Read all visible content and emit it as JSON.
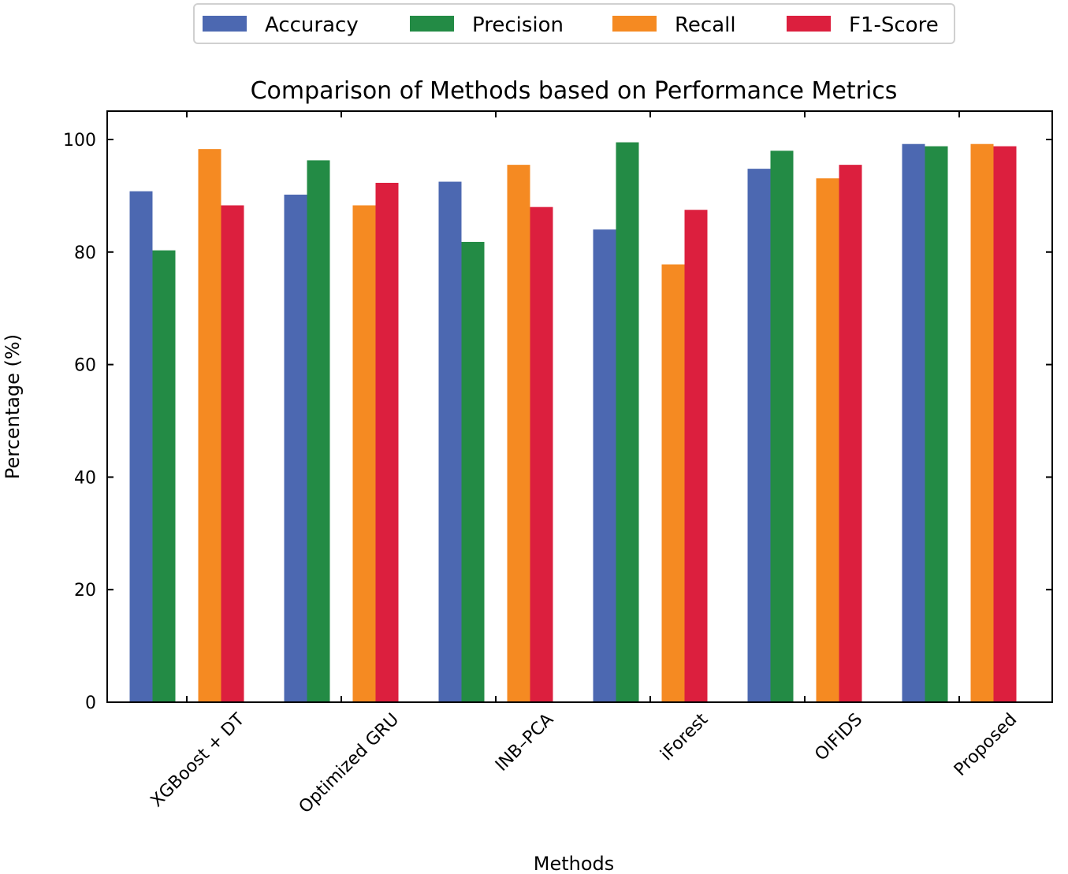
{
  "chart_data": {
    "type": "bar",
    "title": "Comparison of Methods based on Performance Metrics",
    "xlabel": "Methods",
    "ylabel": "Percentage (%)",
    "ylim": [
      0,
      105
    ],
    "yticks": [
      0,
      20,
      40,
      60,
      80,
      100
    ],
    "grid": false,
    "legend_position": "top-center",
    "categories": [
      "XGBoost + DT",
      "Optimized GRU",
      "INB–PCA",
      "iForest",
      "OIFIDS",
      "Proposed"
    ],
    "series": [
      {
        "name": "Accuracy",
        "color": "#4c68b1",
        "values": [
          90.8,
          90.2,
          92.5,
          84.0,
          94.8,
          99.2
        ]
      },
      {
        "name": "Precision",
        "color": "#238b45",
        "values": [
          80.3,
          96.3,
          81.8,
          99.5,
          98.0,
          98.8
        ]
      },
      {
        "name": "Recall",
        "color": "#f58a22",
        "values": [
          98.3,
          88.3,
          95.5,
          77.8,
          93.1,
          99.2
        ]
      },
      {
        "name": "F1-Score",
        "color": "#dc1f3e",
        "values": [
          88.3,
          92.3,
          88.0,
          87.5,
          95.5,
          98.8
        ]
      }
    ]
  }
}
